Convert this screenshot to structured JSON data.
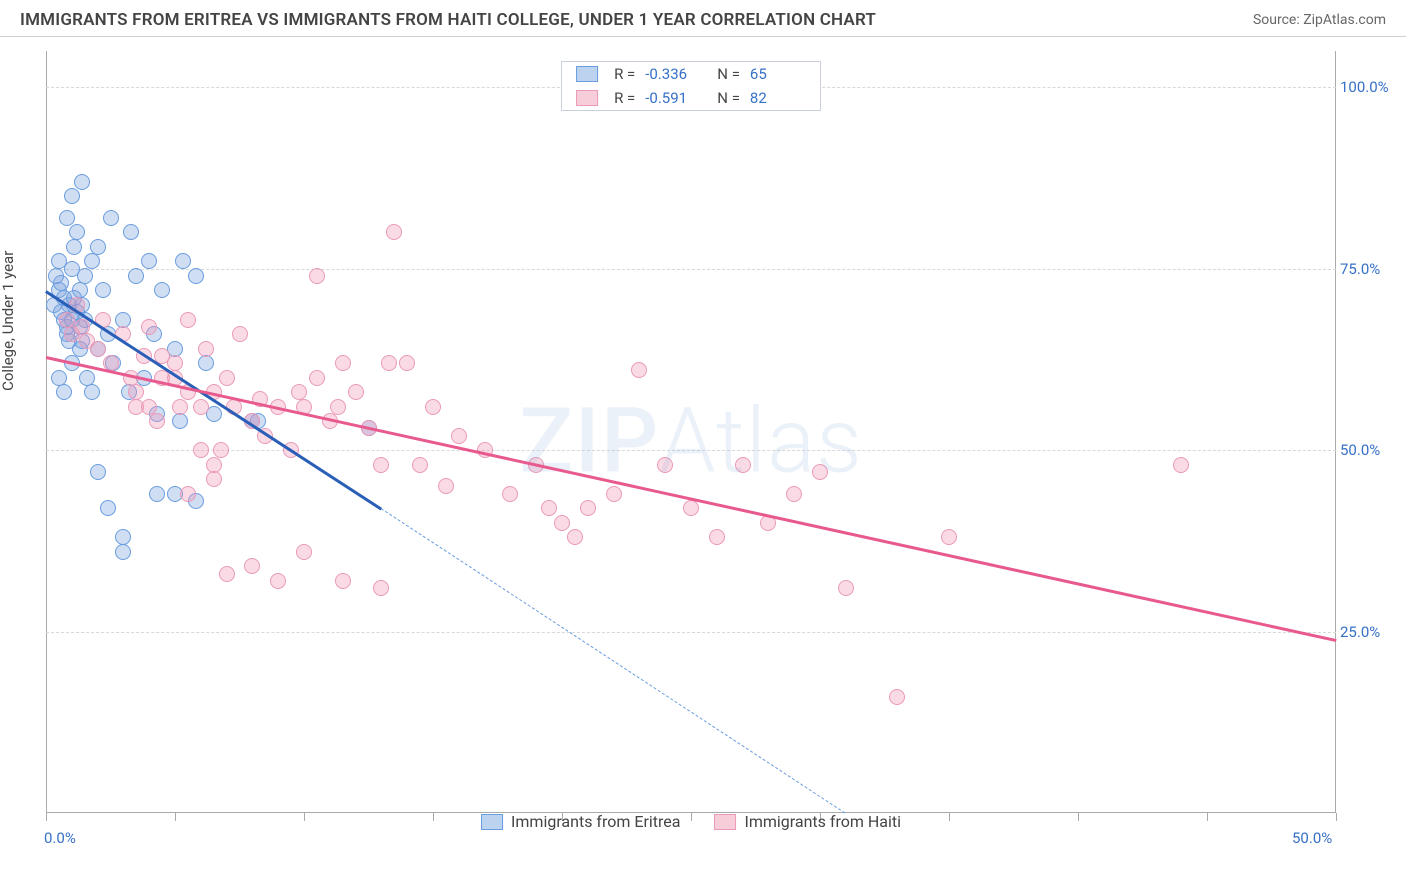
{
  "header": {
    "title": "IMMIGRANTS FROM ERITREA VS IMMIGRANTS FROM HAITI COLLEGE, UNDER 1 YEAR CORRELATION CHART",
    "source": "Source: ZipAtlas.com"
  },
  "ylabel": "College, Under 1 year",
  "watermark": {
    "bold": "ZIP",
    "thin": "Atlas"
  },
  "chart": {
    "type": "scatter",
    "xlim": [
      0,
      50
    ],
    "ylim": [
      0,
      105
    ],
    "y_ticks": [
      25,
      50,
      75,
      100
    ],
    "y_tick_labels": [
      "25.0%",
      "50.0%",
      "75.0%",
      "100.0%"
    ],
    "x_ticks": [
      0,
      5,
      10,
      15,
      20,
      25,
      30,
      35,
      40,
      45,
      50
    ],
    "x_tick_labels": {
      "0": "0.0%",
      "50": "50.0%"
    },
    "grid_color": "#d8d8d8",
    "axis_color": "#aaaaaa",
    "tick_label_color": "#3670c7",
    "background_color": "#ffffff",
    "marker_radius": 8,
    "marker_opacity": 0.55,
    "series": [
      {
        "name": "Immigrants from Eritrea",
        "key": "eritrea",
        "color_fill": "rgba(120,160,220,0.35)",
        "color_stroke": "#6a9de0",
        "legend_swatch_fill": "#bcd3ef",
        "legend_swatch_border": "#6a9de0",
        "r": -0.336,
        "n": 65,
        "trend": {
          "x1": 0,
          "y1": 72,
          "x2": 13,
          "y2": 42,
          "color": "#2a5fb8",
          "width": 2.5
        },
        "trend_extend": {
          "x1": 13,
          "y1": 42,
          "x2": 31,
          "y2": 0,
          "color": "#6a9de0"
        },
        "points": [
          [
            0.3,
            70
          ],
          [
            0.5,
            72
          ],
          [
            0.7,
            68
          ],
          [
            0.8,
            66
          ],
          [
            0.6,
            73
          ],
          [
            0.9,
            70
          ],
          [
            1.0,
            75
          ],
          [
            1.1,
            78
          ],
          [
            1.2,
            80
          ],
          [
            0.8,
            82
          ],
          [
            1.0,
            85
          ],
          [
            1.4,
            87
          ],
          [
            1.3,
            72
          ],
          [
            1.4,
            70
          ],
          [
            1.5,
            74
          ],
          [
            1.8,
            76
          ],
          [
            2.0,
            78
          ],
          [
            2.2,
            72
          ],
          [
            2.4,
            66
          ],
          [
            2.0,
            64
          ],
          [
            2.5,
            82
          ],
          [
            2.6,
            62
          ],
          [
            3.0,
            68
          ],
          [
            3.2,
            58
          ],
          [
            3.3,
            80
          ],
          [
            3.5,
            74
          ],
          [
            3.8,
            60
          ],
          [
            4.0,
            76
          ],
          [
            4.2,
            66
          ],
          [
            4.3,
            55
          ],
          [
            4.5,
            72
          ],
          [
            5.0,
            64
          ],
          [
            5.2,
            54
          ],
          [
            5.3,
            76
          ],
          [
            5.8,
            74
          ],
          [
            6.2,
            62
          ],
          [
            6.5,
            55
          ],
          [
            2.0,
            47
          ],
          [
            2.4,
            42
          ],
          [
            3.0,
            38
          ],
          [
            3.0,
            36
          ],
          [
            4.3,
            44
          ],
          [
            5.0,
            44
          ],
          [
            5.8,
            43
          ],
          [
            8.0,
            54
          ],
          [
            8.2,
            54
          ],
          [
            12.5,
            53
          ],
          [
            0.5,
            60
          ],
          [
            0.7,
            58
          ],
          [
            1.0,
            62
          ],
          [
            1.3,
            64
          ],
          [
            1.6,
            60
          ],
          [
            1.8,
            58
          ],
          [
            0.4,
            74
          ],
          [
            0.5,
            76
          ],
          [
            0.6,
            69
          ],
          [
            0.7,
            71
          ],
          [
            0.8,
            67
          ],
          [
            0.9,
            65
          ],
          [
            1.0,
            68
          ],
          [
            1.1,
            71
          ],
          [
            1.2,
            69
          ],
          [
            1.3,
            67
          ],
          [
            1.4,
            65
          ],
          [
            1.5,
            68
          ]
        ]
      },
      {
        "name": "Immigrants from Haiti",
        "key": "haiti",
        "color_fill": "rgba(240,150,180,0.35)",
        "color_stroke": "#ea9ab8",
        "legend_swatch_fill": "#f6cdd9",
        "legend_swatch_border": "#ea9ab8",
        "r": -0.591,
        "n": 82,
        "trend": {
          "x1": 0,
          "y1": 63,
          "x2": 50,
          "y2": 24,
          "color": "#e85a8e",
          "width": 2.5
        },
        "points": [
          [
            0.8,
            68
          ],
          [
            1.0,
            66
          ],
          [
            1.2,
            70
          ],
          [
            1.4,
            67
          ],
          [
            1.6,
            65
          ],
          [
            2.0,
            64
          ],
          [
            2.2,
            68
          ],
          [
            2.5,
            62
          ],
          [
            3.0,
            66
          ],
          [
            3.3,
            60
          ],
          [
            3.5,
            58
          ],
          [
            3.8,
            63
          ],
          [
            4.0,
            56
          ],
          [
            4.3,
            54
          ],
          [
            4.5,
            60
          ],
          [
            5.0,
            62
          ],
          [
            5.2,
            56
          ],
          [
            5.5,
            68
          ],
          [
            6.0,
            56
          ],
          [
            6.2,
            64
          ],
          [
            6.5,
            58
          ],
          [
            6.8,
            50
          ],
          [
            7.0,
            60
          ],
          [
            7.3,
            56
          ],
          [
            7.5,
            66
          ],
          [
            8.0,
            54
          ],
          [
            8.3,
            57
          ],
          [
            8.5,
            52
          ],
          [
            9.0,
            56
          ],
          [
            9.5,
            50
          ],
          [
            9.8,
            58
          ],
          [
            10.0,
            56
          ],
          [
            10.5,
            60
          ],
          [
            11.0,
            54
          ],
          [
            11.3,
            56
          ],
          [
            11.5,
            62
          ],
          [
            12.0,
            58
          ],
          [
            12.5,
            53
          ],
          [
            13.0,
            48
          ],
          [
            13.3,
            62
          ],
          [
            13.5,
            80
          ],
          [
            10.5,
            74
          ],
          [
            14.0,
            62
          ],
          [
            14.5,
            48
          ],
          [
            15.0,
            56
          ],
          [
            15.5,
            45
          ],
          [
            16.0,
            52
          ],
          [
            17.0,
            50
          ],
          [
            18.0,
            44
          ],
          [
            19.0,
            48
          ],
          [
            19.5,
            42
          ],
          [
            20.0,
            40
          ],
          [
            20.5,
            38
          ],
          [
            21.0,
            42
          ],
          [
            22.0,
            44
          ],
          [
            23.0,
            61
          ],
          [
            24.0,
            48
          ],
          [
            25.0,
            42
          ],
          [
            26.0,
            38
          ],
          [
            27.0,
            48
          ],
          [
            28.0,
            40
          ],
          [
            29.0,
            44
          ],
          [
            30.0,
            47
          ],
          [
            31.0,
            31
          ],
          [
            33.0,
            16
          ],
          [
            35.0,
            38
          ],
          [
            44.0,
            48
          ],
          [
            9.0,
            32
          ],
          [
            10.0,
            36
          ],
          [
            11.5,
            32
          ],
          [
            13.0,
            31
          ],
          [
            5.5,
            44
          ],
          [
            6.5,
            46
          ],
          [
            7.0,
            33
          ],
          [
            8.0,
            34
          ],
          [
            4.0,
            67
          ],
          [
            4.5,
            63
          ],
          [
            5.0,
            60
          ],
          [
            5.5,
            58
          ],
          [
            6.0,
            50
          ],
          [
            6.5,
            48
          ],
          [
            3.5,
            56
          ]
        ]
      }
    ]
  },
  "legend_top": {
    "rows": [
      {
        "swatch": 0,
        "r_label": "R =",
        "r_val": "-0.336",
        "n_label": "N =",
        "n_val": "65"
      },
      {
        "swatch": 1,
        "r_label": "R =",
        "r_val": "-0.591",
        "n_label": "N =",
        "n_val": "82"
      }
    ]
  }
}
